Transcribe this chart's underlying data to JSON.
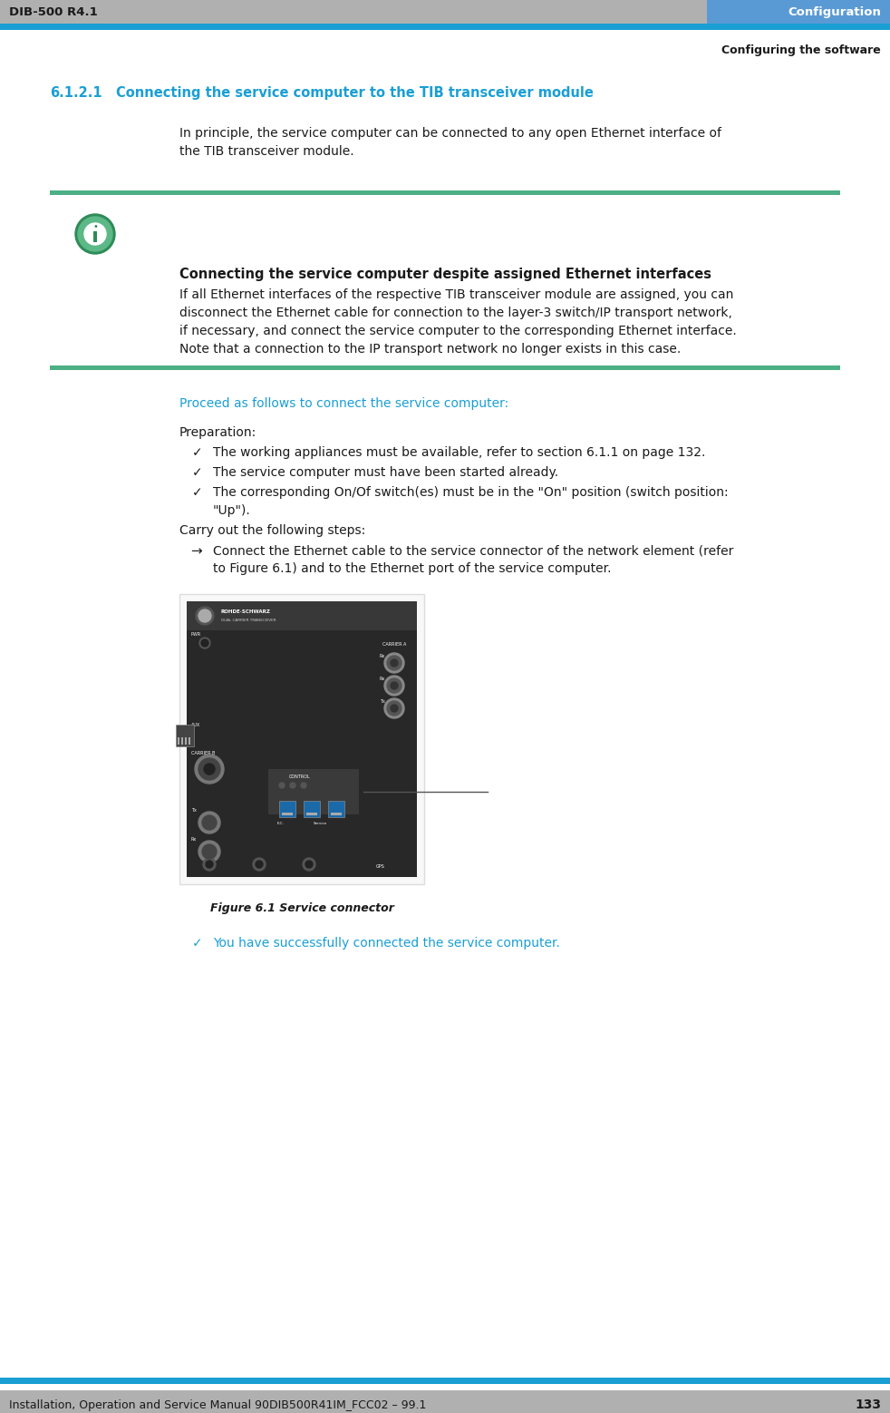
{
  "page_width": 9.82,
  "page_height": 15.58,
  "dpi": 100,
  "bg_color": "#ffffff",
  "header_bg": "#b0b0b0",
  "header_blue_bar": "#1a9fd4",
  "header_left_text": "DIB-500 R4.1",
  "header_right_text": "Configuration",
  "subheader_right": "Configuring the software",
  "footer_bg": "#b0b0b0",
  "footer_left_text": "Installation, Operation and Service Manual 90DIB500R41IM_FCC02 – 99.1",
  "footer_right_text": "133",
  "section_number": "6.1.2.1",
  "section_title": "Connecting the service computer to the TIB transceiver module",
  "section_title_color": "#1a9fd4",
  "body_text_color": "#1a1a1a",
  "note_bar_color": "#4caf86",
  "note_title": "Connecting the service computer despite assigned Ethernet interfaces",
  "proceed_color": "#1a9fd4",
  "proceed_text": "Proceed as follows to connect the service computer:",
  "figure_caption": "Figure 6.1 Service connector",
  "success_color": "#1a9fd4",
  "success_text": "You have successfully connected the service computer."
}
